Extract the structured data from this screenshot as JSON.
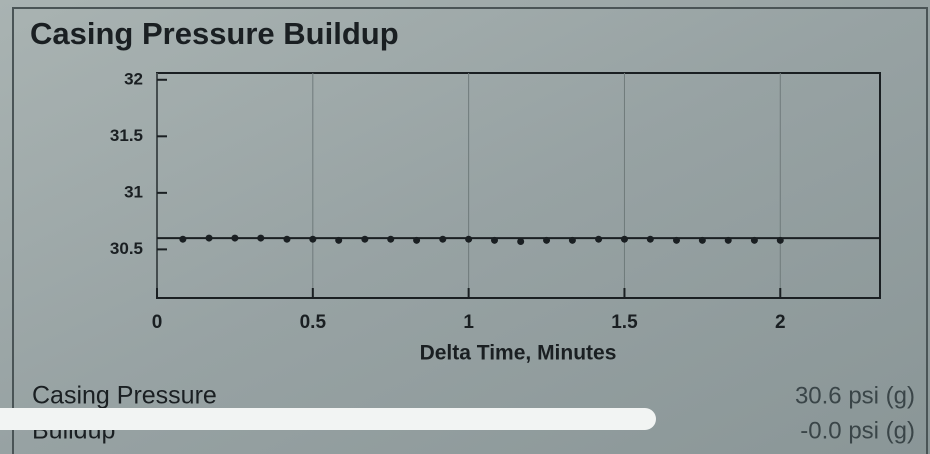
{
  "chart_data": {
    "type": "scatter",
    "title": "Casing Pressure Buildup",
    "xlabel": "Delta Time, Minutes",
    "series": [
      {
        "color": "#1a1f22",
        "x": [
          0.083,
          0.167,
          0.25,
          0.333,
          0.417,
          0.5,
          0.583,
          0.667,
          0.75,
          0.833,
          0.917,
          1.0,
          1.083,
          1.167,
          1.25,
          1.333,
          1.417,
          1.5,
          1.583,
          1.667,
          1.75,
          1.833,
          1.917,
          2.0
        ],
        "values": [
          30.59,
          30.6,
          30.6,
          30.6,
          30.59,
          30.59,
          30.58,
          30.59,
          30.59,
          30.58,
          30.59,
          30.59,
          30.58,
          30.57,
          30.58,
          30.58,
          30.59,
          30.59,
          30.59,
          30.58,
          30.58,
          30.58,
          30.58,
          30.58
        ]
      }
    ],
    "trend": {
      "x": [
        0,
        2.32
      ],
      "values": [
        30.6,
        30.6
      ],
      "color": "#1a1f22"
    },
    "xlim": [
      0,
      2.32
    ],
    "ylim": [
      30.07,
      32.06
    ],
    "xticks": [
      0,
      0.5,
      1,
      1.5,
      2
    ],
    "yticks": [
      30.5,
      31,
      31.5,
      32
    ],
    "grid": true
  },
  "readouts": [
    {
      "label": "Casing Pressure",
      "value": "30.6 psi (g)"
    },
    {
      "label": "Buildup",
      "value": "-0.0 psi (g)"
    }
  ]
}
